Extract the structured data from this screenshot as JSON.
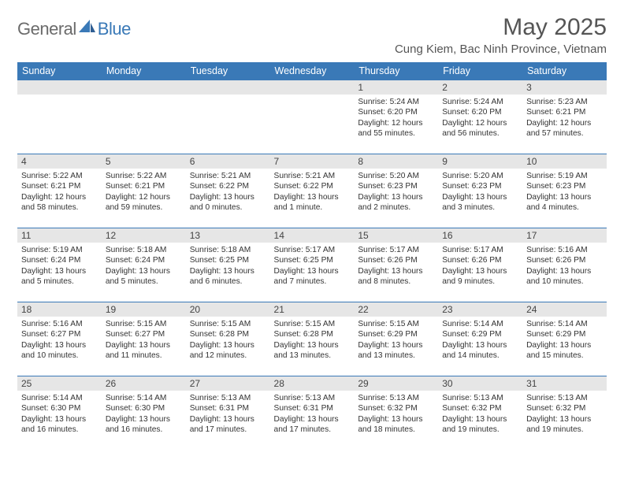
{
  "logo": {
    "general": "General",
    "blue": "Blue"
  },
  "title": "May 2025",
  "location": "Cung Kiem, Bac Ninh Province, Vietnam",
  "colors": {
    "header_bg": "#3a79b7",
    "header_fg": "#ffffff",
    "daynum_bg": "#e6e6e6",
    "text": "#333333",
    "rule": "#3a79b7",
    "logo_gray": "#6b6b6b",
    "logo_blue": "#3a79b7"
  },
  "weekdays": [
    "Sunday",
    "Monday",
    "Tuesday",
    "Wednesday",
    "Thursday",
    "Friday",
    "Saturday"
  ],
  "weeks": [
    [
      null,
      null,
      null,
      null,
      {
        "n": "1",
        "sr": "5:24 AM",
        "ss": "6:20 PM",
        "dl": "12 hours and 55 minutes."
      },
      {
        "n": "2",
        "sr": "5:24 AM",
        "ss": "6:20 PM",
        "dl": "12 hours and 56 minutes."
      },
      {
        "n": "3",
        "sr": "5:23 AM",
        "ss": "6:21 PM",
        "dl": "12 hours and 57 minutes."
      }
    ],
    [
      {
        "n": "4",
        "sr": "5:22 AM",
        "ss": "6:21 PM",
        "dl": "12 hours and 58 minutes."
      },
      {
        "n": "5",
        "sr": "5:22 AM",
        "ss": "6:21 PM",
        "dl": "12 hours and 59 minutes."
      },
      {
        "n": "6",
        "sr": "5:21 AM",
        "ss": "6:22 PM",
        "dl": "13 hours and 0 minutes."
      },
      {
        "n": "7",
        "sr": "5:21 AM",
        "ss": "6:22 PM",
        "dl": "13 hours and 1 minute."
      },
      {
        "n": "8",
        "sr": "5:20 AM",
        "ss": "6:23 PM",
        "dl": "13 hours and 2 minutes."
      },
      {
        "n": "9",
        "sr": "5:20 AM",
        "ss": "6:23 PM",
        "dl": "13 hours and 3 minutes."
      },
      {
        "n": "10",
        "sr": "5:19 AM",
        "ss": "6:23 PM",
        "dl": "13 hours and 4 minutes."
      }
    ],
    [
      {
        "n": "11",
        "sr": "5:19 AM",
        "ss": "6:24 PM",
        "dl": "13 hours and 5 minutes."
      },
      {
        "n": "12",
        "sr": "5:18 AM",
        "ss": "6:24 PM",
        "dl": "13 hours and 5 minutes."
      },
      {
        "n": "13",
        "sr": "5:18 AM",
        "ss": "6:25 PM",
        "dl": "13 hours and 6 minutes."
      },
      {
        "n": "14",
        "sr": "5:17 AM",
        "ss": "6:25 PM",
        "dl": "13 hours and 7 minutes."
      },
      {
        "n": "15",
        "sr": "5:17 AM",
        "ss": "6:26 PM",
        "dl": "13 hours and 8 minutes."
      },
      {
        "n": "16",
        "sr": "5:17 AM",
        "ss": "6:26 PM",
        "dl": "13 hours and 9 minutes."
      },
      {
        "n": "17",
        "sr": "5:16 AM",
        "ss": "6:26 PM",
        "dl": "13 hours and 10 minutes."
      }
    ],
    [
      {
        "n": "18",
        "sr": "5:16 AM",
        "ss": "6:27 PM",
        "dl": "13 hours and 10 minutes."
      },
      {
        "n": "19",
        "sr": "5:15 AM",
        "ss": "6:27 PM",
        "dl": "13 hours and 11 minutes."
      },
      {
        "n": "20",
        "sr": "5:15 AM",
        "ss": "6:28 PM",
        "dl": "13 hours and 12 minutes."
      },
      {
        "n": "21",
        "sr": "5:15 AM",
        "ss": "6:28 PM",
        "dl": "13 hours and 13 minutes."
      },
      {
        "n": "22",
        "sr": "5:15 AM",
        "ss": "6:29 PM",
        "dl": "13 hours and 13 minutes."
      },
      {
        "n": "23",
        "sr": "5:14 AM",
        "ss": "6:29 PM",
        "dl": "13 hours and 14 minutes."
      },
      {
        "n": "24",
        "sr": "5:14 AM",
        "ss": "6:29 PM",
        "dl": "13 hours and 15 minutes."
      }
    ],
    [
      {
        "n": "25",
        "sr": "5:14 AM",
        "ss": "6:30 PM",
        "dl": "13 hours and 16 minutes."
      },
      {
        "n": "26",
        "sr": "5:14 AM",
        "ss": "6:30 PM",
        "dl": "13 hours and 16 minutes."
      },
      {
        "n": "27",
        "sr": "5:13 AM",
        "ss": "6:31 PM",
        "dl": "13 hours and 17 minutes."
      },
      {
        "n": "28",
        "sr": "5:13 AM",
        "ss": "6:31 PM",
        "dl": "13 hours and 17 minutes."
      },
      {
        "n": "29",
        "sr": "5:13 AM",
        "ss": "6:32 PM",
        "dl": "13 hours and 18 minutes."
      },
      {
        "n": "30",
        "sr": "5:13 AM",
        "ss": "6:32 PM",
        "dl": "13 hours and 19 minutes."
      },
      {
        "n": "31",
        "sr": "5:13 AM",
        "ss": "6:32 PM",
        "dl": "13 hours and 19 minutes."
      }
    ]
  ],
  "labels": {
    "sunrise": "Sunrise:",
    "sunset": "Sunset:",
    "daylight": "Daylight:"
  }
}
